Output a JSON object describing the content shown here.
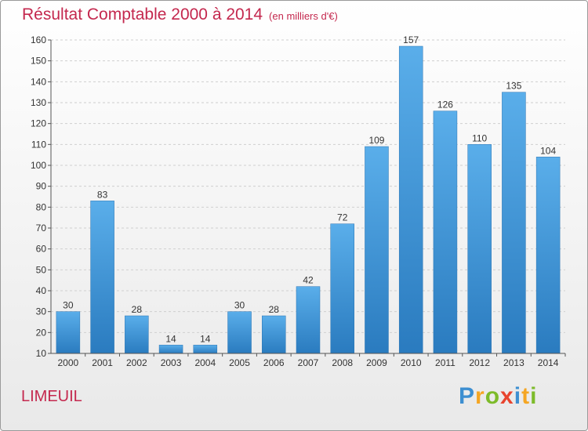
{
  "header": {
    "title": "Résultat Comptable 2000 à 2014",
    "subtitle": "(en milliers d'€)"
  },
  "footer": {
    "location": "LIMEUIL",
    "logo_letters": [
      "P",
      "r",
      "o",
      "x",
      "i",
      "t",
      "i"
    ],
    "logo_colors": [
      "#3d8fd1",
      "#f5a623",
      "#7dbb2a",
      "#e8442e",
      "#3d8fd1",
      "#f5a623",
      "#7dbb2a"
    ]
  },
  "chart_data": {
    "type": "bar",
    "categories": [
      "2000",
      "2001",
      "2002",
      "2003",
      "2004",
      "2005",
      "2006",
      "2007",
      "2008",
      "2009",
      "2010",
      "2011",
      "2012",
      "2013",
      "2014"
    ],
    "values": [
      30,
      83,
      28,
      14,
      14,
      30,
      28,
      42,
      72,
      109,
      157,
      126,
      110,
      135,
      104
    ],
    "ylim": [
      10,
      160
    ],
    "yticks": [
      10,
      20,
      30,
      40,
      50,
      60,
      70,
      80,
      90,
      100,
      110,
      120,
      130,
      140,
      150,
      160
    ],
    "grid": true,
    "bar_color": "#3a92d6"
  }
}
